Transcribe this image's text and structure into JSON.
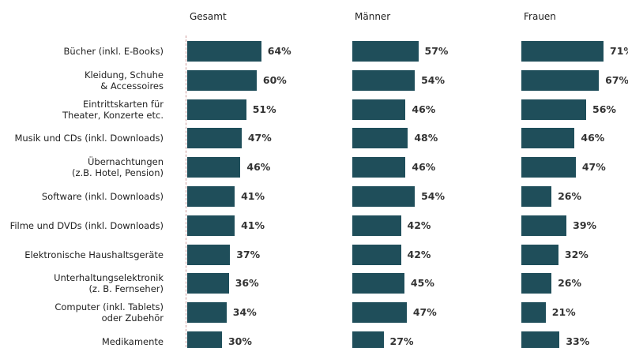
{
  "chart_data": [
    {
      "type": "bar",
      "title": "Gesamt",
      "color": "#1f4e5a",
      "categories": [
        "Bücher (inkl. E-Books)",
        "Kleidung, Schuhe\n& Accessoires",
        "Eintrittskarten für\nTheater, Konzerte etc.",
        "Musik und CDs (inkl. Downloads)",
        "Übernachtungen\n(z.B. Hotel, Pension)",
        "Software (inkl. Downloads)",
        "Filme und DVDs (inkl. Downloads)",
        "Elektronische Haushaltsgeräte",
        "Unterhaltungselektronik\n(z. B. Fernseher)",
        "Computer (inkl. Tablets)\noder Zubehör",
        "Medikamente"
      ],
      "values": [
        64,
        60,
        51,
        47,
        46,
        41,
        41,
        37,
        36,
        34,
        30
      ],
      "value_labels": [
        "64%",
        "60%",
        "51%",
        "47%",
        "46%",
        "41%",
        "41%",
        "37%",
        "36%",
        "34%",
        "30%"
      ]
    },
    {
      "type": "bar",
      "title": "Männer",
      "color": "#1f4e5a",
      "values": [
        57,
        54,
        46,
        48,
        46,
        54,
        42,
        42,
        45,
        47,
        27
      ],
      "value_labels": [
        "57%",
        "54%",
        "46%",
        "48%",
        "46%",
        "54%",
        "42%",
        "42%",
        "45%",
        "47%",
        "27%"
      ]
    },
    {
      "type": "bar",
      "title": "Frauen",
      "color": "#1f4e5a",
      "values": [
        71,
        67,
        56,
        46,
        47,
        26,
        39,
        32,
        26,
        21,
        33
      ],
      "value_labels": [
        "71%",
        "67%",
        "56%",
        "46%",
        "47%",
        "26%",
        "39%",
        "32%",
        "26%",
        "21%",
        "33%"
      ]
    }
  ]
}
